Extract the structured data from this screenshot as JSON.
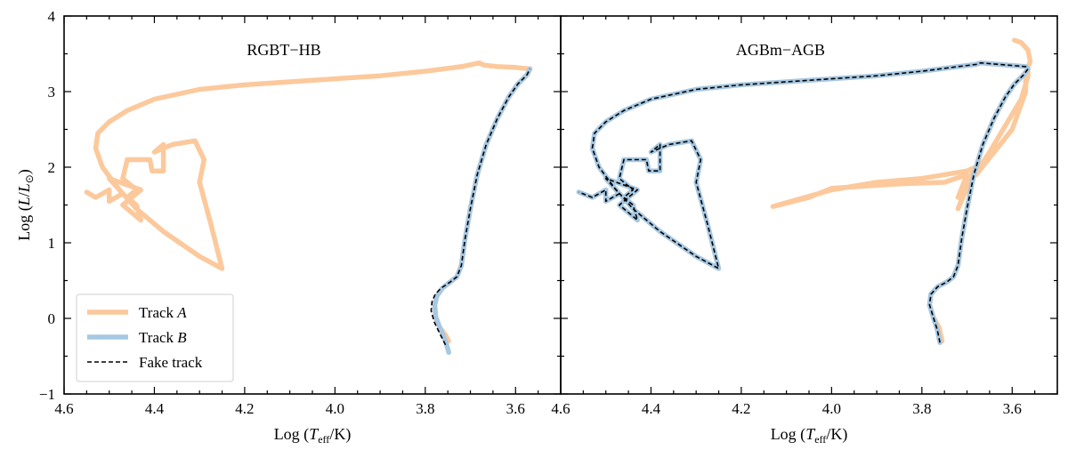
{
  "chart_data": [
    {
      "type": "line",
      "title": "RGBT−HB",
      "xlabel": "Log (T_eff/K)",
      "ylabel": "Log (L/L⊙)",
      "xlim": [
        4.6,
        3.5
      ],
      "ylim": [
        -1,
        4
      ],
      "x_reversed": true,
      "xticks": [
        "4.6",
        "4.4",
        "4.2",
        "4.0",
        "3.8",
        "3.6"
      ],
      "yticks": [
        "−1",
        "0",
        "1",
        "2",
        "3",
        "4"
      ],
      "legend": {
        "placement": "lower-left",
        "entries": [
          "Track A",
          "Track B",
          "Fake track"
        ]
      },
      "series": [
        {
          "name": "Track A",
          "color": "#fcc99c",
          "x": [
            3.748,
            3.755,
            3.768,
            3.777,
            3.779,
            3.774,
            3.762,
            3.745,
            3.73,
            3.72,
            3.712,
            3.7,
            3.685,
            3.665,
            3.64,
            3.615,
            3.595,
            3.575,
            3.568,
            3.6,
            3.64,
            3.67,
            3.68,
            3.72,
            3.8,
            3.9,
            4.0,
            4.1,
            4.2,
            4.3,
            4.4,
            4.46,
            4.5,
            4.525,
            4.53,
            4.515,
            4.48,
            4.44,
            4.38,
            4.3,
            4.25,
            4.275,
            4.3,
            4.29,
            4.31,
            4.36,
            4.4,
            4.38,
            4.38,
            4.405,
            4.41,
            4.46,
            4.47,
            4.44,
            4.46,
            4.44,
            4.43,
            4.47,
            4.43,
            4.5,
            4.47,
            4.5,
            4.5,
            4.53,
            4.55
          ],
          "y": [
            -0.3,
            -0.22,
            -0.12,
            0.02,
            0.18,
            0.3,
            0.4,
            0.48,
            0.55,
            0.7,
            1.05,
            1.45,
            1.9,
            2.3,
            2.65,
            2.93,
            3.1,
            3.22,
            3.3,
            3.32,
            3.33,
            3.35,
            3.38,
            3.33,
            3.27,
            3.21,
            3.17,
            3.13,
            3.09,
            3.03,
            2.9,
            2.75,
            2.6,
            2.45,
            2.25,
            2.0,
            1.72,
            1.45,
            1.15,
            0.82,
            0.66,
            1.25,
            1.8,
            2.1,
            2.35,
            2.3,
            2.2,
            2.3,
            1.95,
            1.95,
            2.1,
            2.1,
            1.85,
            1.7,
            1.6,
            1.5,
            1.3,
            1.5,
            1.7,
            1.85,
            1.65,
            1.55,
            1.7,
            1.6,
            1.67
          ]
        },
        {
          "name": "Track B",
          "color": "#a7c8e2",
          "x": [
            3.748,
            3.755,
            3.768,
            3.777,
            3.779,
            3.774,
            3.762,
            3.745,
            3.73,
            3.72,
            3.712,
            3.7,
            3.685,
            3.665,
            3.64,
            3.615,
            3.595,
            3.575,
            3.568
          ],
          "y": [
            -0.45,
            -0.3,
            -0.12,
            0.02,
            0.18,
            0.3,
            0.4,
            0.48,
            0.55,
            0.7,
            1.05,
            1.45,
            1.9,
            2.3,
            2.65,
            2.93,
            3.1,
            3.22,
            3.3
          ]
        },
        {
          "name": "Fake track",
          "color": "#000000",
          "x": [
            3.755,
            3.768,
            3.78,
            3.787,
            3.785,
            3.778,
            3.765,
            3.745,
            3.73,
            3.72,
            3.712,
            3.7,
            3.685,
            3.665,
            3.64,
            3.615,
            3.595,
            3.575,
            3.568
          ],
          "y": [
            -0.35,
            -0.2,
            -0.05,
            0.1,
            0.22,
            0.32,
            0.4,
            0.48,
            0.55,
            0.7,
            1.05,
            1.45,
            1.9,
            2.3,
            2.65,
            2.93,
            3.1,
            3.22,
            3.3
          ]
        }
      ]
    },
    {
      "type": "line",
      "title": "AGBm−AGB",
      "xlabel": "Log (T_eff/K)",
      "xlim": [
        4.6,
        3.5
      ],
      "ylim": [
        -1,
        4
      ],
      "x_reversed": true,
      "xticks": [
        "4.6",
        "4.4",
        "4.2",
        "4.0",
        "3.8",
        "3.6"
      ],
      "series": [
        {
          "name": "Track A",
          "color": "#fcc99c",
          "x": [
            3.755,
            3.762,
            3.775,
            3.783,
            3.78,
            3.765,
            3.745,
            3.73,
            3.72,
            3.712,
            3.7,
            3.685,
            3.665,
            3.64,
            3.615,
            3.595,
            3.575,
            3.565,
            3.565,
            3.58,
            3.61,
            3.65,
            3.7,
            3.72,
            3.68,
            3.7,
            3.72,
            3.7,
            3.75,
            3.85,
            4.0,
            4.05,
            4.13,
            4.0,
            3.9,
            3.8,
            3.7,
            3.66,
            3.68,
            3.6,
            3.57,
            3.57,
            3.56,
            3.565,
            3.58,
            3.595
          ],
          "y": [
            -0.3,
            -0.12,
            0.02,
            0.18,
            0.32,
            0.42,
            0.48,
            0.55,
            0.7,
            1.05,
            1.45,
            1.9,
            2.3,
            2.65,
            2.93,
            3.1,
            3.22,
            3.3,
            3.2,
            2.9,
            2.6,
            2.2,
            1.75,
            1.45,
            2.0,
            1.8,
            1.6,
            1.9,
            1.8,
            1.78,
            1.72,
            1.6,
            1.48,
            1.7,
            1.8,
            1.85,
            1.95,
            2.05,
            1.9,
            2.5,
            3.0,
            3.25,
            3.4,
            3.55,
            3.65,
            3.68
          ]
        },
        {
          "name": "Track B",
          "color": "#a7c8e2",
          "x": [
            3.76,
            3.766,
            3.775,
            3.783,
            3.78,
            3.765,
            3.745,
            3.73,
            3.72,
            3.712,
            3.7,
            3.685,
            3.665,
            3.64,
            3.615,
            3.595,
            3.575,
            3.565,
            3.57,
            3.67,
            3.68,
            3.72,
            3.8,
            3.9,
            4.0,
            4.1,
            4.2,
            4.3,
            4.4,
            4.46,
            4.5,
            4.525,
            4.53,
            4.515,
            4.48,
            4.44,
            4.38,
            4.3,
            4.25,
            4.275,
            4.3,
            4.29,
            4.31,
            4.36,
            4.4,
            4.38,
            4.38,
            4.405,
            4.41,
            4.46,
            4.47,
            4.44,
            4.46,
            4.44,
            4.43,
            4.47,
            4.43,
            4.5,
            4.47,
            4.5,
            4.5,
            4.53,
            4.56
          ],
          "y": [
            -0.32,
            -0.15,
            0.02,
            0.18,
            0.32,
            0.42,
            0.48,
            0.55,
            0.7,
            1.05,
            1.45,
            1.9,
            2.3,
            2.65,
            2.93,
            3.1,
            3.22,
            3.3,
            3.33,
            3.38,
            3.36,
            3.33,
            3.27,
            3.21,
            3.17,
            3.13,
            3.09,
            3.03,
            2.9,
            2.75,
            2.6,
            2.45,
            2.25,
            2.0,
            1.72,
            1.45,
            1.15,
            0.82,
            0.66,
            1.25,
            1.8,
            2.1,
            2.35,
            2.3,
            2.2,
            2.3,
            1.95,
            1.95,
            2.1,
            2.1,
            1.85,
            1.7,
            1.6,
            1.5,
            1.3,
            1.5,
            1.7,
            1.85,
            1.65,
            1.55,
            1.7,
            1.6,
            1.67
          ]
        },
        {
          "name": "Fake track",
          "color": "#000000",
          "x": [
            3.76,
            3.766,
            3.775,
            3.783,
            3.78,
            3.765,
            3.745,
            3.73,
            3.72,
            3.712,
            3.7,
            3.685,
            3.665,
            3.64,
            3.615,
            3.595,
            3.575,
            3.565,
            3.57,
            3.67,
            3.68,
            3.72,
            3.8,
            3.9,
            4.0,
            4.1,
            4.2,
            4.3,
            4.4,
            4.46,
            4.5,
            4.525,
            4.53,
            4.515,
            4.48,
            4.44,
            4.38,
            4.3,
            4.25,
            4.275,
            4.3,
            4.29,
            4.31,
            4.36,
            4.4,
            4.38,
            4.38,
            4.405,
            4.41,
            4.46,
            4.47,
            4.44,
            4.46,
            4.44,
            4.43,
            4.47,
            4.43,
            4.5,
            4.47,
            4.5,
            4.5,
            4.53,
            4.56
          ],
          "y": [
            -0.32,
            -0.15,
            0.02,
            0.18,
            0.32,
            0.42,
            0.48,
            0.55,
            0.7,
            1.05,
            1.45,
            1.9,
            2.3,
            2.65,
            2.93,
            3.1,
            3.22,
            3.3,
            3.33,
            3.38,
            3.36,
            3.33,
            3.27,
            3.21,
            3.17,
            3.13,
            3.09,
            3.03,
            2.9,
            2.75,
            2.6,
            2.45,
            2.25,
            2.0,
            1.72,
            1.45,
            1.15,
            0.82,
            0.66,
            1.25,
            1.8,
            2.1,
            2.35,
            2.3,
            2.2,
            2.3,
            1.95,
            1.95,
            2.1,
            2.1,
            1.85,
            1.7,
            1.6,
            1.5,
            1.3,
            1.5,
            1.7,
            1.85,
            1.65,
            1.55,
            1.7,
            1.6,
            1.67
          ]
        }
      ]
    }
  ]
}
